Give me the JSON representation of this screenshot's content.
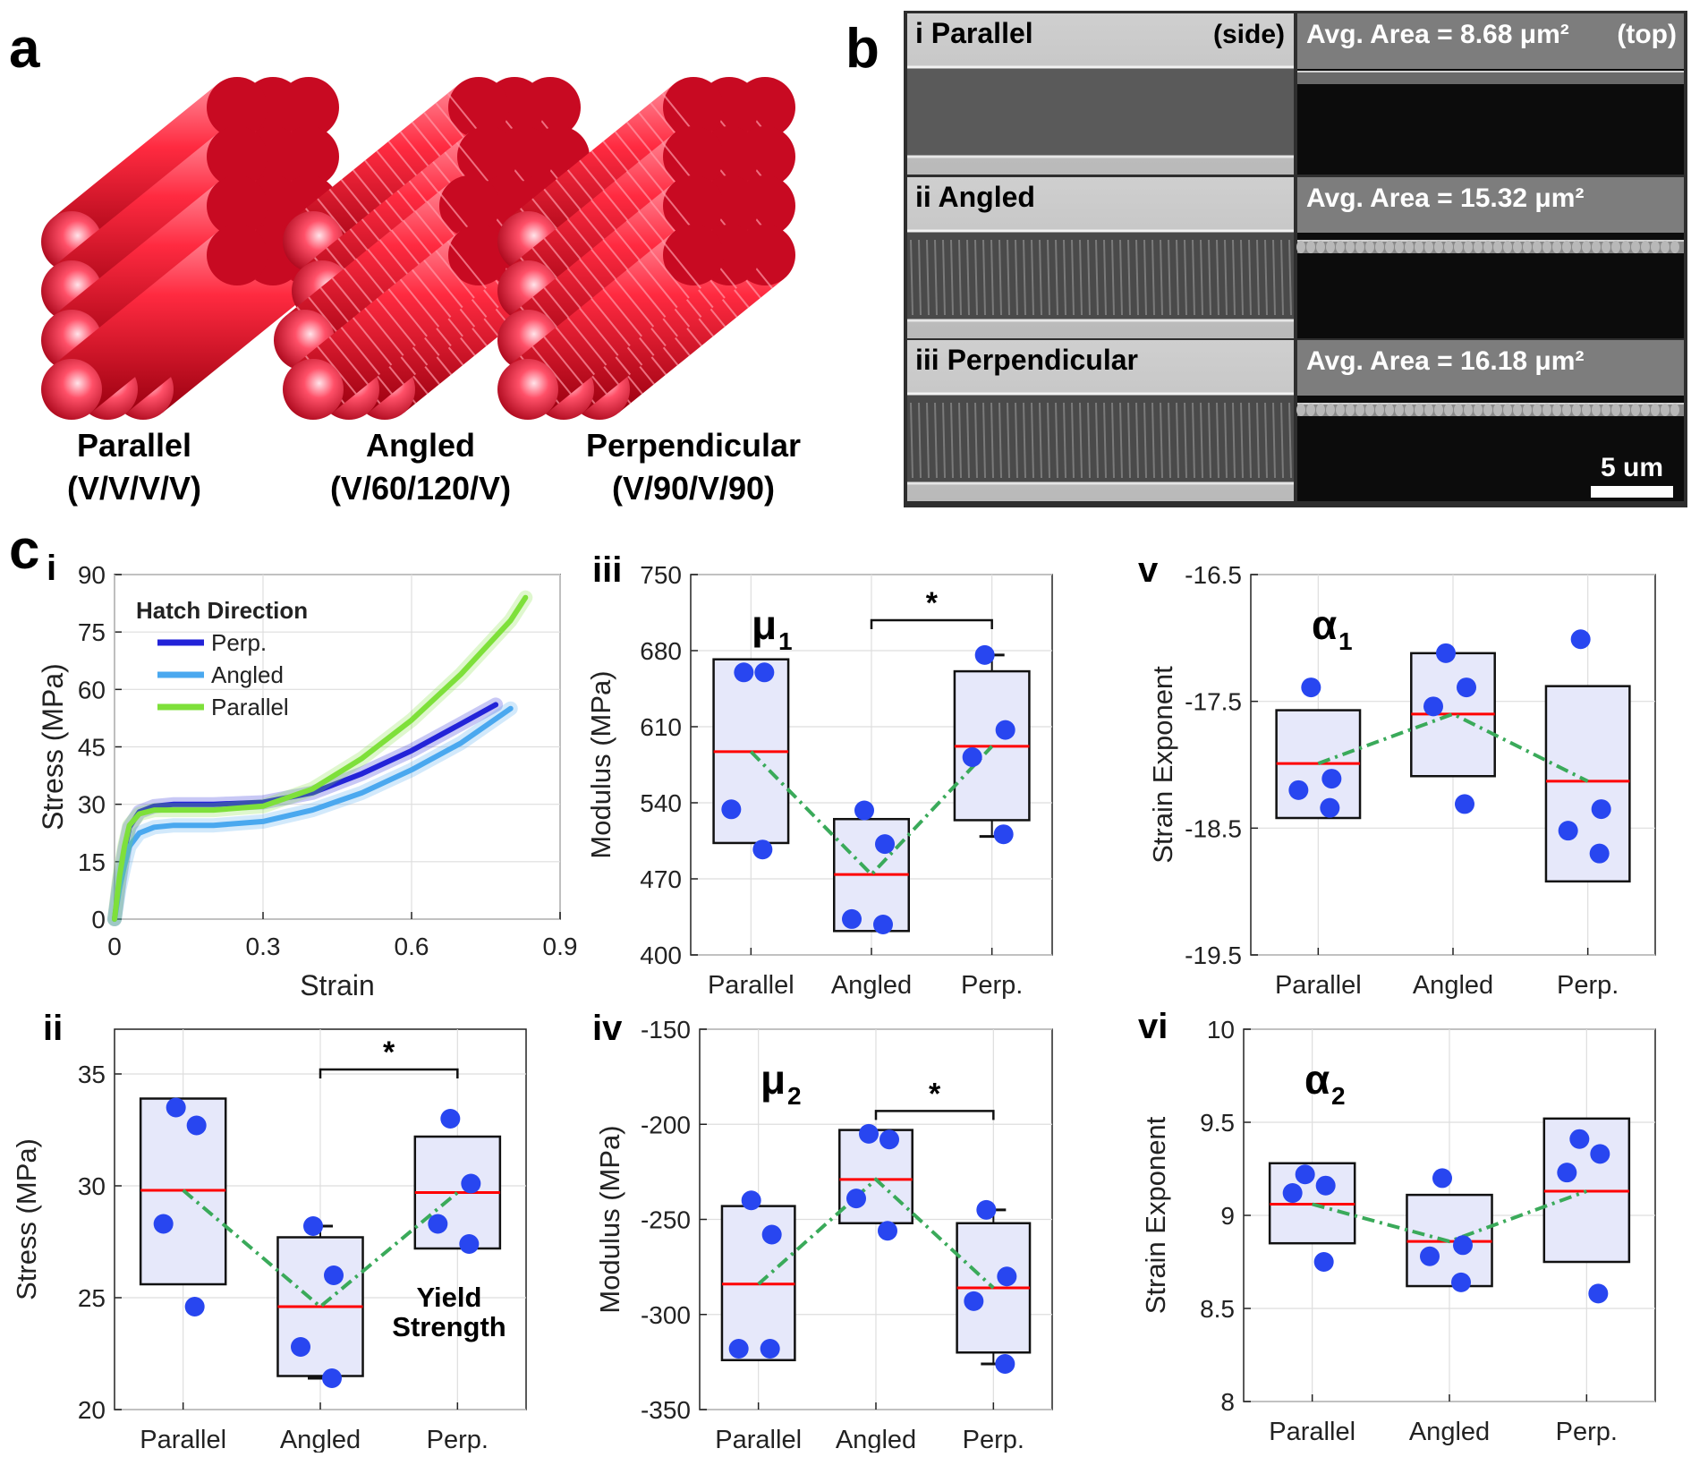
{
  "panel_a": {
    "letter": "a",
    "structures": [
      {
        "name": "Parallel",
        "code": "(V/V/V/V)"
      },
      {
        "name": "Angled",
        "code": "(V/60/120/V)"
      },
      {
        "name": "Perpendicular",
        "code": "(V/90/V/90)"
      }
    ],
    "color": "#e8102a"
  },
  "panel_b": {
    "letter": "b",
    "rows": [
      {
        "roman": "i",
        "name": "Parallel",
        "side_tag": "(side)",
        "area": "Avg. Area = 8.68 μm²",
        "top_tag": "(top)"
      },
      {
        "roman": "ii",
        "name": "Angled",
        "side_tag": "",
        "area": "Avg. Area = 15.32 μm²",
        "top_tag": ""
      },
      {
        "roman": "iii",
        "name": "Perpendicular",
        "side_tag": "",
        "area": "Avg. Area = 16.18 μm²",
        "top_tag": ""
      }
    ],
    "scale_bar": "5 um"
  },
  "panel_c": {
    "letter": "c",
    "colors": {
      "perp": "#2323d8",
      "angled": "#4aa8ef",
      "parallel": "#7ee03a",
      "median": "#ff0000",
      "mean_line": "#3aaa5a",
      "dots": "#2846f0",
      "box_fill": "#e6e8fa"
    }
  },
  "chart_data": [
    {
      "id": "ci",
      "roman": "i",
      "type": "line",
      "xlabel": "Strain",
      "ylabel": "Stress (MPa)",
      "xlim": [
        0,
        0.9
      ],
      "ylim": [
        0,
        90
      ],
      "xticks": [
        "0",
        "0.3",
        "0.6",
        "0.9"
      ],
      "yticks": [
        "0",
        "15",
        "30",
        "45",
        "60",
        "75",
        "90"
      ],
      "legend_title": "Hatch Direction",
      "grid": true,
      "legend_position": "top-left",
      "series": [
        {
          "name": "Perp.",
          "color": "#2323d8",
          "x": [
            0,
            0.01,
            0.02,
            0.03,
            0.05,
            0.08,
            0.12,
            0.2,
            0.3,
            0.4,
            0.5,
            0.6,
            0.7,
            0.77
          ],
          "y": [
            0,
            10,
            18,
            24,
            28,
            29.5,
            30,
            30,
            30.5,
            33,
            38,
            44,
            51,
            56
          ]
        },
        {
          "name": "Angled",
          "color": "#4aa8ef",
          "x": [
            0,
            0.01,
            0.02,
            0.03,
            0.05,
            0.08,
            0.12,
            0.2,
            0.3,
            0.4,
            0.5,
            0.6,
            0.7,
            0.8
          ],
          "y": [
            0,
            8,
            14,
            19,
            22.5,
            24,
            24.5,
            24.5,
            25.5,
            28.5,
            33,
            39,
            46,
            55
          ]
        },
        {
          "name": "Parallel",
          "color": "#7ee03a",
          "x": [
            0,
            0.01,
            0.02,
            0.03,
            0.05,
            0.08,
            0.12,
            0.2,
            0.3,
            0.4,
            0.5,
            0.6,
            0.7,
            0.8,
            0.83
          ],
          "y": [
            0,
            11,
            19,
            24.5,
            27.5,
            28.5,
            28.5,
            28.5,
            29.5,
            34,
            42,
            52,
            64,
            78,
            84
          ]
        }
      ]
    },
    {
      "id": "cii",
      "roman": "ii",
      "type": "box",
      "categories": [
        "Parallel",
        "Angled",
        "Perp."
      ],
      "ylabel": "Stress (MPa)",
      "ylim": [
        20,
        37
      ],
      "yticks": [
        "20",
        "25",
        "30",
        "35"
      ],
      "annotation": "Yield Strength",
      "significance": {
        "from": 1,
        "to": 2,
        "label": "*",
        "y": 35.2
      },
      "boxes": [
        {
          "q1": 25.6,
          "median": 29.8,
          "q3": 33.9,
          "wlo": null,
          "whi": null,
          "points": [
            33.5,
            32.7,
            28.3,
            24.6
          ]
        },
        {
          "q1": 21.5,
          "median": 24.6,
          "q3": 27.7,
          "wlo": 21.4,
          "whi": 28.2,
          "points": [
            28.2,
            26,
            22.8,
            21.4
          ]
        },
        {
          "q1": 27.2,
          "median": 29.7,
          "q3": 32.2,
          "wlo": null,
          "whi": null,
          "points": [
            33,
            30.1,
            28.3,
            27.4
          ]
        }
      ],
      "means": [
        29.8,
        24.6,
        29.7
      ]
    },
    {
      "id": "ciii",
      "roman": "iii",
      "type": "box",
      "symbol": "μ",
      "symbol_sub": "1",
      "categories": [
        "Parallel",
        "Angled",
        "Perp."
      ],
      "ylabel": "Modulus (MPa)",
      "ylim": [
        400,
        750
      ],
      "yticks": [
        "400",
        "470",
        "540",
        "610",
        "680",
        "750"
      ],
      "significance": {
        "from": 1,
        "to": 2,
        "label": "*",
        "y": 708
      },
      "boxes": [
        {
          "q1": 503,
          "median": 587,
          "q3": 672,
          "wlo": null,
          "whi": null,
          "points": [
            660,
            660,
            534,
            497
          ]
        },
        {
          "q1": 422,
          "median": 474,
          "q3": 525,
          "wlo": null,
          "whi": null,
          "points": [
            533,
            502,
            433,
            428
          ]
        },
        {
          "q1": 524,
          "median": 592,
          "q3": 661,
          "wlo": 509,
          "whi": 676,
          "points": [
            676,
            607,
            582,
            511
          ]
        }
      ],
      "means": [
        587,
        474,
        592
      ]
    },
    {
      "id": "civ",
      "roman": "iv",
      "type": "box",
      "symbol": "μ",
      "symbol_sub": "2",
      "categories": [
        "Parallel",
        "Angled",
        "Perp."
      ],
      "ylabel": "Modulus (MPa)",
      "ylim": [
        -350,
        -150
      ],
      "yticks": [
        "-350",
        "-300",
        "-250",
        "-200",
        "-150"
      ],
      "significance": {
        "from": 1,
        "to": 2,
        "label": "*",
        "y": -193
      },
      "boxes": [
        {
          "q1": -324,
          "median": -284,
          "q3": -243,
          "wlo": null,
          "whi": null,
          "points": [
            -240,
            -258,
            -318,
            -318
          ]
        },
        {
          "q1": -252,
          "median": -229,
          "q3": -203,
          "wlo": null,
          "whi": null,
          "points": [
            -205,
            -208,
            -239,
            -256
          ]
        },
        {
          "q1": -320,
          "median": -286,
          "q3": -252,
          "wlo": -326,
          "whi": -245,
          "points": [
            -245,
            -280,
            -293,
            -326
          ]
        }
      ],
      "means": [
        -284,
        -229,
        -286
      ]
    },
    {
      "id": "cv",
      "roman": "v",
      "type": "box",
      "symbol": "α",
      "symbol_sub": "1",
      "categories": [
        "Parallel",
        "Angled",
        "Perp."
      ],
      "ylabel": "Strain Exponent",
      "ylim": [
        -19.5,
        -16.5
      ],
      "yticks": [
        "-19.5",
        "-18.5",
        "-17.5",
        "-16.5"
      ],
      "significance": null,
      "boxes": [
        {
          "q1": -18.42,
          "median": -17.99,
          "q3": -17.57,
          "wlo": null,
          "whi": null,
          "points": [
            -17.39,
            -18.11,
            -18.2,
            -18.34
          ]
        },
        {
          "q1": -18.09,
          "median": -17.6,
          "q3": -17.12,
          "wlo": null,
          "whi": null,
          "points": [
            -17.12,
            -17.39,
            -17.54,
            -18.31
          ]
        },
        {
          "q1": -18.92,
          "median": -18.13,
          "q3": -17.38,
          "wlo": null,
          "whi": null,
          "points": [
            -17.01,
            -18.35,
            -18.52,
            -18.7
          ]
        }
      ],
      "means": [
        -17.99,
        -17.6,
        -18.13
      ]
    },
    {
      "id": "cvi",
      "roman": "vi",
      "type": "box",
      "symbol": "α",
      "symbol_sub": "2",
      "categories": [
        "Parallel",
        "Angled",
        "Perp."
      ],
      "ylabel": "Strain Exponent",
      "ylim": [
        8,
        10
      ],
      "yticks": [
        "8",
        "8.5",
        "9",
        "9.5",
        "10"
      ],
      "significance": null,
      "boxes": [
        {
          "q1": 8.85,
          "median": 9.06,
          "q3": 9.28,
          "wlo": null,
          "whi": null,
          "points": [
            9.22,
            9.16,
            9.12,
            8.75
          ]
        },
        {
          "q1": 8.62,
          "median": 8.86,
          "q3": 9.11,
          "wlo": null,
          "whi": null,
          "points": [
            9.2,
            8.84,
            8.78,
            8.64
          ]
        },
        {
          "q1": 8.75,
          "median": 9.13,
          "q3": 9.52,
          "wlo": null,
          "whi": null,
          "points": [
            9.41,
            9.33,
            9.23,
            8.58
          ]
        }
      ],
      "means": [
        9.06,
        8.86,
        9.13
      ]
    }
  ]
}
